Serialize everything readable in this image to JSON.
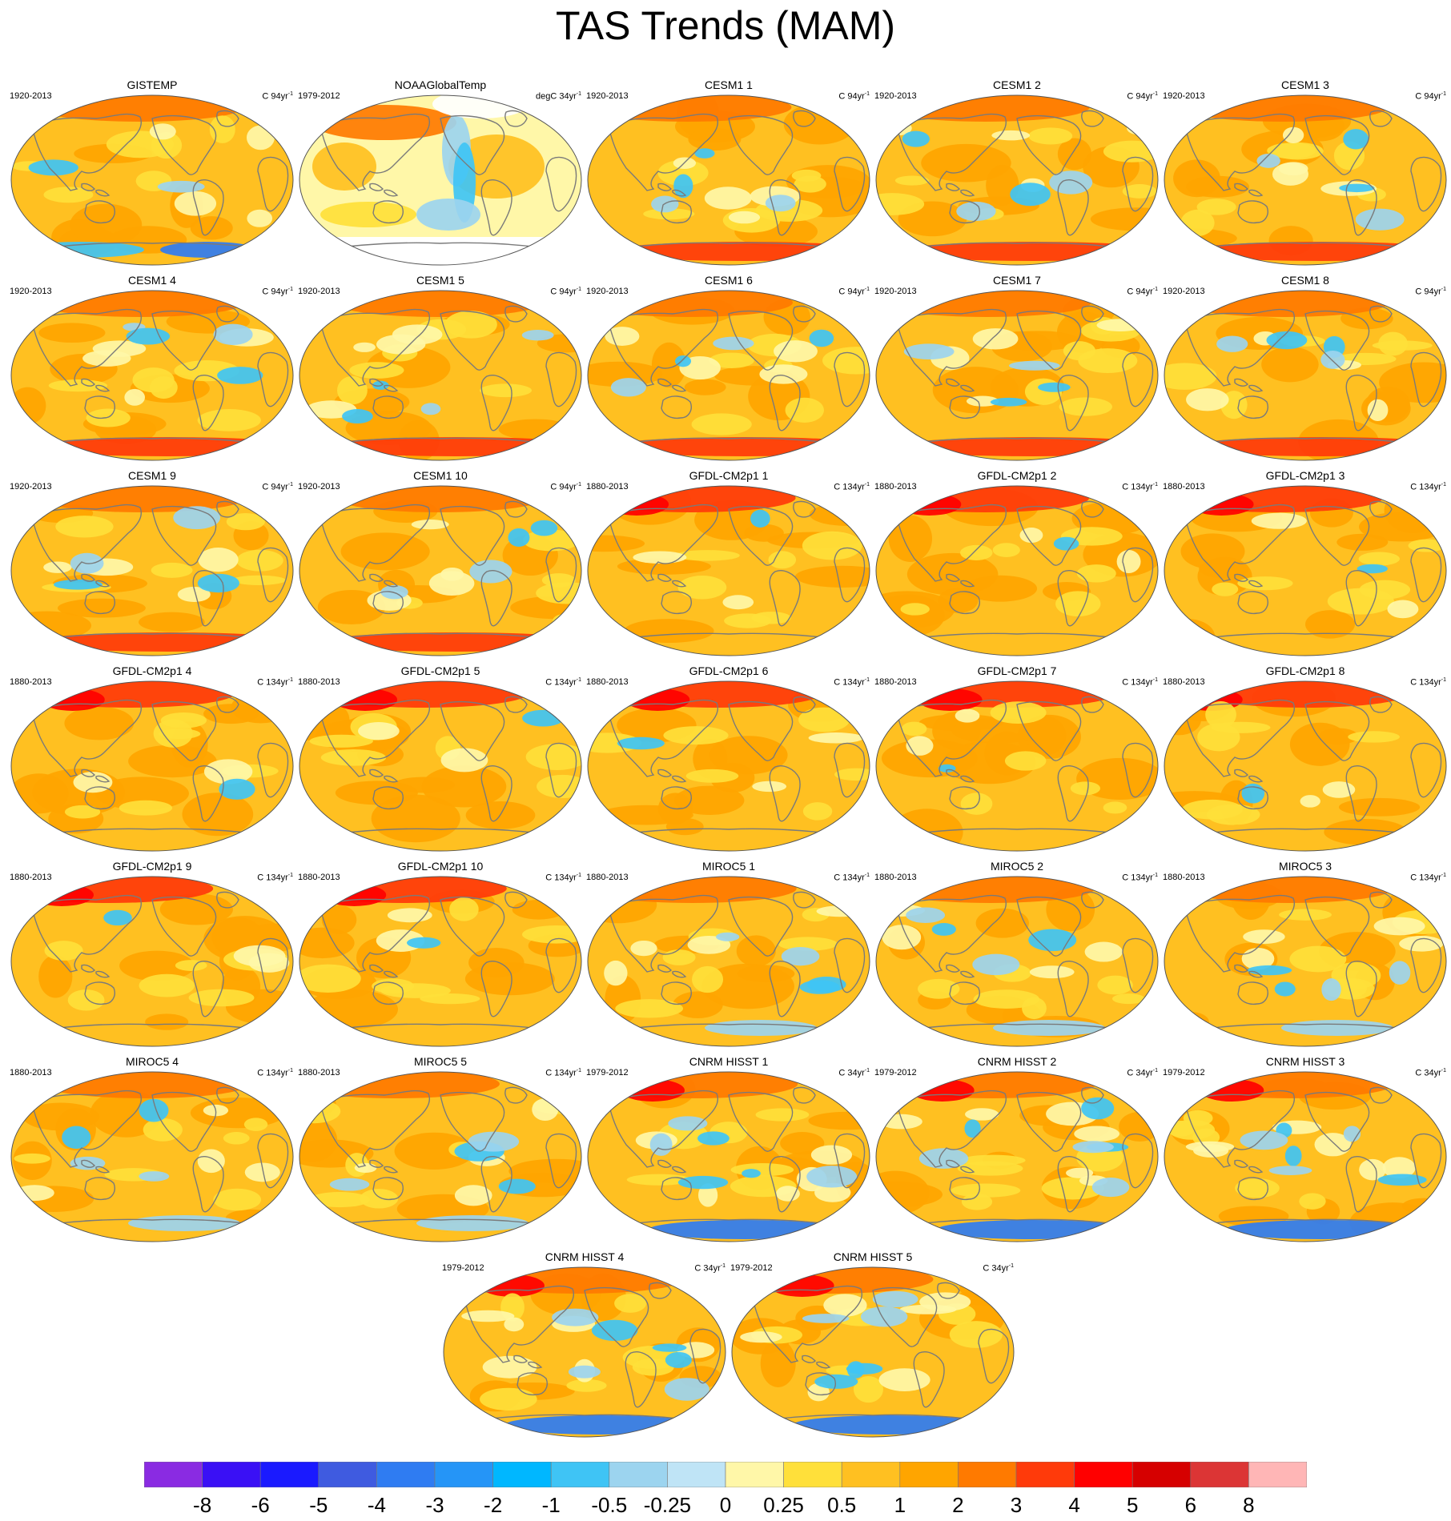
{
  "title": "TAS Trends (MAM)",
  "panels": [
    {
      "name": "GISTEMP",
      "period": "1920-2013",
      "units": "C 94yr",
      "style": "gistemp"
    },
    {
      "name": "NOAAGlobalTemp",
      "period": "1979-2012",
      "units": "degC 34yr",
      "style": "noaa"
    },
    {
      "name": "CESM1 1",
      "period": "1920-2013",
      "units": "C 94yr",
      "style": "cesm"
    },
    {
      "name": "CESM1 2",
      "period": "1920-2013",
      "units": "C 94yr",
      "style": "cesm"
    },
    {
      "name": "CESM1 3",
      "period": "1920-2013",
      "units": "C 94yr",
      "style": "cesm"
    },
    {
      "name": "CESM1 4",
      "period": "1920-2013",
      "units": "C 94yr",
      "style": "cesm"
    },
    {
      "name": "CESM1 5",
      "period": "1920-2013",
      "units": "C 94yr",
      "style": "cesm"
    },
    {
      "name": "CESM1 6",
      "period": "1920-2013",
      "units": "C 94yr",
      "style": "cesm"
    },
    {
      "name": "CESM1 7",
      "period": "1920-2013",
      "units": "C 94yr",
      "style": "cesm"
    },
    {
      "name": "CESM1 8",
      "period": "1920-2013",
      "units": "C 94yr",
      "style": "cesm"
    },
    {
      "name": "CESM1 9",
      "period": "1920-2013",
      "units": "C 94yr",
      "style": "cesm"
    },
    {
      "name": "CESM1 10",
      "period": "1920-2013",
      "units": "C 94yr",
      "style": "cesm"
    },
    {
      "name": "GFDL-CM2p1 1",
      "period": "1880-2013",
      "units": "C 134yr",
      "style": "gfdl"
    },
    {
      "name": "GFDL-CM2p1 2",
      "period": "1880-2013",
      "units": "C 134yr",
      "style": "gfdl"
    },
    {
      "name": "GFDL-CM2p1 3",
      "period": "1880-2013",
      "units": "C 134yr",
      "style": "gfdl"
    },
    {
      "name": "GFDL-CM2p1 4",
      "period": "1880-2013",
      "units": "C 134yr",
      "style": "gfdl"
    },
    {
      "name": "GFDL-CM2p1 5",
      "period": "1880-2013",
      "units": "C 134yr",
      "style": "gfdl"
    },
    {
      "name": "GFDL-CM2p1 6",
      "period": "1880-2013",
      "units": "C 134yr",
      "style": "gfdl"
    },
    {
      "name": "GFDL-CM2p1 7",
      "period": "1880-2013",
      "units": "C 134yr",
      "style": "gfdl"
    },
    {
      "name": "GFDL-CM2p1 8",
      "period": "1880-2013",
      "units": "C 134yr",
      "style": "gfdl"
    },
    {
      "name": "GFDL-CM2p1 9",
      "period": "1880-2013",
      "units": "C 134yr",
      "style": "gfdl"
    },
    {
      "name": "GFDL-CM2p1 10",
      "period": "1880-2013",
      "units": "C 134yr",
      "style": "gfdl"
    },
    {
      "name": "MIROC5 1",
      "period": "1880-2013",
      "units": "C 134yr",
      "style": "miroc"
    },
    {
      "name": "MIROC5 2",
      "period": "1880-2013",
      "units": "C 134yr",
      "style": "miroc"
    },
    {
      "name": "MIROC5 3",
      "period": "1880-2013",
      "units": "C 134yr",
      "style": "miroc"
    },
    {
      "name": "MIROC5 4",
      "period": "1880-2013",
      "units": "C 134yr",
      "style": "miroc"
    },
    {
      "name": "MIROC5 5",
      "period": "1880-2013",
      "units": "C 134yr",
      "style": "miroc"
    },
    {
      "name": "CNRM HISST 1",
      "period": "1979-2012",
      "units": "C 34yr",
      "style": "cnrm"
    },
    {
      "name": "CNRM HISST 2",
      "period": "1979-2012",
      "units": "C 34yr",
      "style": "cnrm"
    },
    {
      "name": "CNRM HISST 3",
      "period": "1979-2012",
      "units": "C 34yr",
      "style": "cnrm"
    },
    {
      "name": "CNRM HISST 4",
      "period": "1979-2012",
      "units": "C 34yr",
      "style": "cnrm"
    },
    {
      "name": "CNRM HISST 5",
      "period": "1979-2012",
      "units": "C 34yr",
      "style": "cnrm"
    }
  ],
  "units_exponent": "-1",
  "colorbar": {
    "labels": [
      "-8",
      "-6",
      "-5",
      "-4",
      "-3",
      "-2",
      "-1",
      "-0.5",
      "-0.25",
      "0",
      "0.25",
      "0.5",
      "1",
      "2",
      "3",
      "4",
      "5",
      "6",
      "8"
    ],
    "colors": [
      "#8a2be2",
      "#3a10f5",
      "#1a1aff",
      "#3f5be0",
      "#2f7cf2",
      "#2595f7",
      "#00b7ff",
      "#3fc4f5",
      "#9cd4ef",
      "#bfe4f6",
      "#fff7a8",
      "#ffe03a",
      "#ffc021",
      "#ffa500",
      "#ff7a00",
      "#ff3a0a",
      "#ff0000",
      "#d60000",
      "#dc3535",
      "#ffb6b6"
    ]
  },
  "palette": {
    "background": "#ffc021",
    "land_outline": "#7a7a7a",
    "warm": "#ff7a00",
    "hot": "#ff0000",
    "pale": "#fff7a8",
    "light_blue": "#9cd4ef",
    "blue": "#3fc4f5"
  }
}
